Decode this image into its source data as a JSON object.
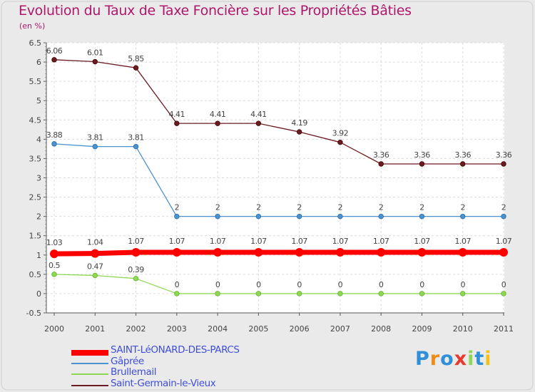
{
  "title": "Evolution du Taux de Taxe Foncière sur les Propriétés Bâties",
  "subtitle": "(en %)",
  "chart_data": {
    "type": "line",
    "title": "Evolution du Taux de Taxe Foncière sur les Propriétés Bâties",
    "ylabel": "(en %)",
    "xlabel": "",
    "x": [
      2000,
      2001,
      2002,
      2003,
      2004,
      2005,
      2006,
      2007,
      2008,
      2009,
      2010,
      2011
    ],
    "ylim": [
      -0.5,
      6.5
    ],
    "yticks": [
      -0.5,
      0,
      0.5,
      1,
      1.5,
      2,
      2.5,
      3,
      3.5,
      4,
      4.5,
      5,
      5.5,
      6,
      6.5
    ],
    "series": [
      {
        "name": "Saint-Germain-le-Vieux",
        "color": "#6b1b22",
        "values": [
          6.06,
          6.01,
          5.85,
          4.41,
          4.41,
          4.41,
          4.19,
          3.92,
          3.36,
          3.36,
          3.36,
          3.36
        ],
        "labels": [
          "6.06",
          "6.01",
          "5.85",
          "4.41",
          "4.41",
          "4.41",
          "4.19",
          "3.92",
          "3.36",
          "3.36",
          "3.36",
          "3.36"
        ]
      },
      {
        "name": "Gâprée",
        "color": "#4c92cf",
        "values": [
          3.88,
          3.81,
          3.81,
          2,
          2,
          2,
          2,
          2,
          2,
          2,
          2,
          2
        ],
        "labels": [
          "3.88",
          "3.81",
          "3.81",
          "2",
          "2",
          "2",
          "2",
          "2",
          "2",
          "2",
          "2",
          "2"
        ]
      },
      {
        "name": "SAINT-LéONARD-DES-PARCS",
        "color": "#ff0000",
        "values": [
          1.03,
          1.04,
          1.07,
          1.07,
          1.07,
          1.07,
          1.07,
          1.07,
          1.07,
          1.07,
          1.07,
          1.07
        ],
        "labels": [
          "1.03",
          "1.04",
          "1.07",
          "1.07",
          "1.07",
          "1.07",
          "1.07",
          "1.07",
          "1.07",
          "1.07",
          "1.07",
          "1.07"
        ]
      },
      {
        "name": "Brullemail",
        "color": "#8ed854",
        "values": [
          0.5,
          0.47,
          0.39,
          0,
          0,
          0,
          0,
          0,
          0,
          0,
          0,
          0
        ],
        "labels": [
          "0.5",
          "0.47",
          "0.39",
          "0",
          "0",
          "0",
          "0",
          "0",
          "0",
          "0",
          "0",
          "0"
        ]
      }
    ]
  },
  "legend": [
    {
      "name": "SAINT-LéONARD-DES-PARCS",
      "color": "#ff0000",
      "thick": true
    },
    {
      "name": "Gâprée",
      "color": "#4c92cf",
      "thick": false
    },
    {
      "name": "Brullemail",
      "color": "#8ed854",
      "thick": false
    },
    {
      "name": "Saint-Germain-le-Vieux",
      "color": "#6b1b22",
      "thick": false
    }
  ],
  "logo": {
    "text": "Proxiti",
    "letters": [
      "P",
      "r",
      "o",
      "x",
      "i",
      "t",
      "i"
    ],
    "colors": [
      "#2f8fd8",
      "#f28a16",
      "#2f8fd8",
      "#e63b2e",
      "#8ed854",
      "#2f8fd8",
      "#f2c21a"
    ]
  }
}
